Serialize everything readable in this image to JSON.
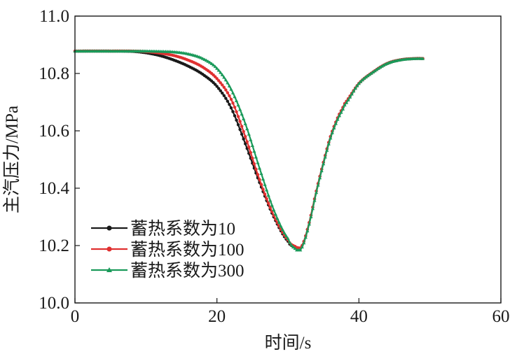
{
  "chart_data": {
    "type": "line",
    "xlabel": "时间/s",
    "ylabel": "主汽压力/MPa",
    "xlim": [
      0,
      60
    ],
    "ylim": [
      10.0,
      11.0
    ],
    "xticks": [
      0,
      20,
      40,
      60
    ],
    "xtick_labels": [
      "0",
      "20",
      "40",
      "60"
    ],
    "yticks": [
      10.0,
      10.2,
      10.4,
      10.6,
      10.8,
      11.0
    ],
    "ytick_labels": [
      "10.0",
      "10.2",
      "10.4",
      "10.6",
      "10.8",
      "11.0"
    ],
    "legend_position": "lower-left",
    "series": [
      {
        "name": "蓄热系数为10",
        "color": "#1a1a1a",
        "marker": "circle",
        "x": [
          0,
          5,
          8,
          10,
          12,
          14,
          16,
          18,
          20,
          22,
          24,
          26,
          28,
          30,
          31,
          31.5,
          32,
          33,
          34,
          35,
          36,
          37,
          38,
          40,
          42,
          44,
          46,
          48,
          49
        ],
        "y": [
          10.878,
          10.878,
          10.877,
          10.872,
          10.862,
          10.846,
          10.825,
          10.797,
          10.755,
          10.68,
          10.555,
          10.42,
          10.3,
          10.215,
          10.195,
          10.19,
          10.2,
          10.28,
          10.39,
          10.49,
          10.58,
          10.645,
          10.695,
          10.765,
          10.805,
          10.835,
          10.848,
          10.852,
          10.852
        ]
      },
      {
        "name": "蓄热系数为100",
        "color": "#e03030",
        "marker": "circle",
        "x": [
          0,
          5,
          8,
          10,
          12,
          14,
          16,
          18,
          20,
          22,
          24,
          26,
          28,
          30,
          31,
          31.7,
          32,
          33,
          34,
          35,
          36,
          37,
          38,
          40,
          42,
          44,
          46,
          48,
          49
        ],
        "y": [
          10.878,
          10.878,
          10.878,
          10.876,
          10.871,
          10.862,
          10.846,
          10.822,
          10.782,
          10.71,
          10.58,
          10.43,
          10.305,
          10.22,
          10.197,
          10.192,
          10.2,
          10.28,
          10.39,
          10.49,
          10.58,
          10.645,
          10.695,
          10.765,
          10.805,
          10.835,
          10.848,
          10.852,
          10.852
        ]
      },
      {
        "name": "蓄热系数为300",
        "color": "#1a9a5a",
        "marker": "triangle",
        "x": [
          0,
          5,
          8,
          10,
          12,
          14,
          16,
          18,
          20,
          22,
          24,
          26,
          28,
          30,
          31,
          31.5,
          32,
          33,
          34,
          35,
          36,
          37,
          38,
          40,
          42,
          44,
          46,
          48,
          49
        ],
        "y": [
          10.878,
          10.878,
          10.878,
          10.878,
          10.877,
          10.875,
          10.868,
          10.852,
          10.818,
          10.745,
          10.625,
          10.47,
          10.325,
          10.225,
          10.19,
          10.185,
          10.195,
          10.275,
          10.385,
          10.485,
          10.575,
          10.64,
          10.69,
          10.765,
          10.805,
          10.835,
          10.848,
          10.852,
          10.852
        ]
      }
    ]
  }
}
